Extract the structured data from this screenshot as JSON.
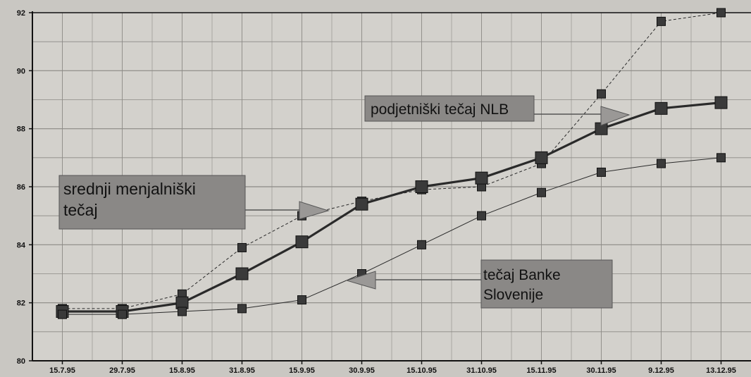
{
  "chart_data": {
    "type": "line",
    "categories": [
      "15.7.95",
      "29.7.95",
      "15.8.95",
      "31.8.95",
      "15.9.95",
      "30.9.95",
      "15.10.95",
      "31.10.95",
      "15.11.95",
      "30.11.95",
      "9.12.95",
      "13.12.95"
    ],
    "ylim": [
      80,
      92
    ],
    "yticks": [
      80,
      82,
      84,
      86,
      88,
      90,
      92
    ],
    "grid": true,
    "title": "",
    "xlabel": "",
    "ylabel": "",
    "series": [
      {
        "key": "nlb",
        "style": "dashed-thin",
        "values": [
          81.8,
          81.8,
          82.3,
          83.9,
          85.0,
          85.5,
          85.9,
          86.0,
          86.8,
          89.2,
          91.7,
          92.0
        ]
      },
      {
        "key": "srednji",
        "style": "thick",
        "values": [
          81.7,
          81.7,
          82.0,
          83.0,
          84.1,
          85.4,
          86.0,
          86.3,
          87.0,
          88.0,
          88.7,
          88.9
        ]
      },
      {
        "key": "bs",
        "style": "solid-thin",
        "values": [
          81.6,
          81.6,
          81.7,
          81.8,
          82.1,
          83.0,
          84.0,
          85.0,
          85.8,
          86.5,
          86.8,
          87.0
        ]
      }
    ],
    "annotations": {
      "nlb_label": "podjetniški tečaj NLB",
      "srednji_label_1": "srednji menjalniški",
      "srednji_label_2": "tečaj",
      "bs_label_1": "tečaj Banke",
      "bs_label_2": "Slovenije"
    },
    "colors": {
      "background": "#c9c7c2",
      "plot_background": "#d3d1cc",
      "grid": "#8c8a86",
      "line": "#2a2a2a",
      "marker": "#3a3a3a",
      "label_box": "#8a8886",
      "arrow": "#9a9896"
    }
  }
}
